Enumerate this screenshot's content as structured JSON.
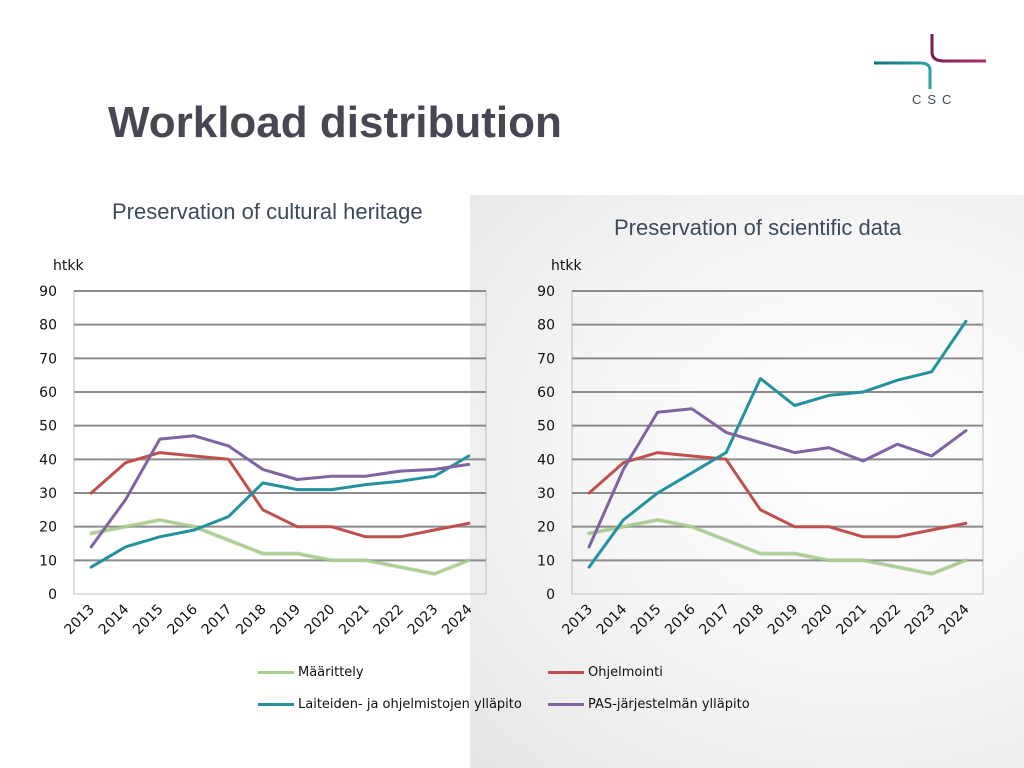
{
  "slide": {
    "title": "Workload distribution",
    "logo_text": "CSC"
  },
  "colors": {
    "maarittely": "#a9cf8f",
    "ohjelmointi": "#c0504d",
    "laitteiden": "#23929e",
    "pas": "#8064a2",
    "grid": "#8c8c8c"
  },
  "legend": [
    {
      "label": "Määrittely",
      "color": "#a9cf8f"
    },
    {
      "label": "Ohjelmointi",
      "color": "#c0504d"
    },
    {
      "label": "Laiteiden- ja ohjelmistojen ylläpito",
      "color": "#23929e"
    },
    {
      "label": "PAS-järjestelmän ylläpito",
      "color": "#8064a2"
    }
  ],
  "chart_data": [
    {
      "type": "line",
      "title": "Preservation of cultural heritage",
      "ylabel": "htkk",
      "xlabel": "",
      "ylim": [
        0,
        90
      ],
      "yticks": [
        0,
        10,
        20,
        30,
        40,
        50,
        60,
        70,
        80,
        90
      ],
      "grid": true,
      "legend_position": "bottom",
      "x": [
        "2013",
        "2014",
        "2015",
        "2016",
        "2017",
        "2018",
        "2019",
        "2020",
        "2021",
        "2022",
        "2023",
        "2024"
      ],
      "series": [
        {
          "name": "Määrittely",
          "values": [
            18,
            20,
            22,
            20,
            16,
            12,
            12,
            10,
            10,
            8,
            6,
            10
          ]
        },
        {
          "name": "Ohjelmointi",
          "values": [
            30,
            39,
            42,
            41,
            40,
            25,
            20,
            20,
            17,
            17,
            19,
            21
          ]
        },
        {
          "name": "Laiteiden- ja ohjelmistojen ylläpito",
          "values": [
            8,
            14,
            17,
            19,
            23,
            33,
            31,
            31,
            32.5,
            33.5,
            35,
            41
          ]
        },
        {
          "name": "PAS-järjestelmän ylläpito",
          "values": [
            14,
            28,
            46,
            47,
            44,
            37,
            34,
            35,
            35,
            36.5,
            37,
            38.5
          ]
        }
      ]
    },
    {
      "type": "line",
      "title": "Preservation of scientific data",
      "ylabel": "htkk",
      "xlabel": "",
      "ylim": [
        0,
        90
      ],
      "yticks": [
        0,
        10,
        20,
        30,
        40,
        50,
        60,
        70,
        80,
        90
      ],
      "grid": true,
      "legend_position": "bottom",
      "x": [
        "2013",
        "2014",
        "2015",
        "2016",
        "2017",
        "2018",
        "2019",
        "2020",
        "2021",
        "2022",
        "2023",
        "2024"
      ],
      "series": [
        {
          "name": "Määrittely",
          "values": [
            18,
            20,
            22,
            20,
            16,
            12,
            12,
            10,
            10,
            8,
            6,
            10
          ]
        },
        {
          "name": "Ohjelmointi",
          "values": [
            30,
            39,
            42,
            41,
            40,
            25,
            20,
            20,
            17,
            17,
            19,
            21
          ]
        },
        {
          "name": "Laiteiden- ja ohjelmistojen ylläpito",
          "values": [
            8,
            22,
            30,
            36,
            42,
            64,
            56,
            59,
            60,
            63.5,
            66,
            81
          ]
        },
        {
          "name": "PAS-järjestelmän ylläpito",
          "values": [
            14,
            37,
            54,
            55,
            48,
            45,
            42,
            43.5,
            39.5,
            44.5,
            41,
            48.5
          ]
        }
      ]
    }
  ]
}
